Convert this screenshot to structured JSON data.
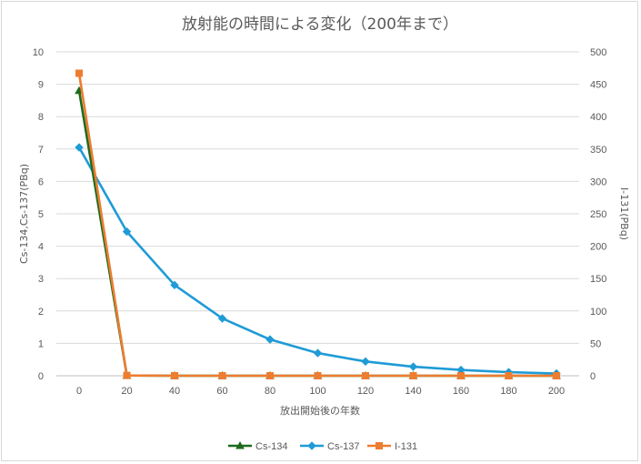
{
  "chart_data": {
    "type": "line",
    "title": "放射能の時間による変化（200年まで）",
    "xlabel": "放出開始後の年数",
    "ylabel_left": "Cs-134,Cs-137(PBq)",
    "ylabel_right": "I-131(PBq)",
    "x": [
      0,
      20,
      40,
      60,
      80,
      100,
      120,
      140,
      160,
      180,
      200
    ],
    "xlim": [
      0,
      200
    ],
    "ylim_left": [
      0,
      10
    ],
    "ylim_right": [
      0,
      500
    ],
    "yticks_left": [
      0,
      1,
      2,
      3,
      4,
      5,
      6,
      7,
      8,
      9,
      10
    ],
    "yticks_right": [
      0,
      50,
      100,
      150,
      200,
      250,
      300,
      350,
      400,
      450,
      500
    ],
    "grid": true,
    "legend_position": "bottom",
    "series": [
      {
        "name": "Cs-134",
        "axis": "left",
        "color": "#1e6b1e",
        "marker": "triangle",
        "values": [
          8.8,
          0.01,
          0.0,
          0.0,
          0.0,
          0.0,
          0.0,
          0.0,
          0.0,
          0.0,
          0.0
        ]
      },
      {
        "name": "Cs-137",
        "axis": "left",
        "color": "#1f9bd6",
        "marker": "diamond",
        "values": [
          7.05,
          4.45,
          2.8,
          1.77,
          1.12,
          0.7,
          0.44,
          0.28,
          0.18,
          0.11,
          0.07
        ]
      },
      {
        "name": "I-131",
        "axis": "right",
        "color": "#ed7d31",
        "marker": "square",
        "values": [
          467,
          0.5,
          0.0,
          0.0,
          0.0,
          0.0,
          0.0,
          0.0,
          0.0,
          0.0,
          0.0
        ]
      }
    ]
  }
}
